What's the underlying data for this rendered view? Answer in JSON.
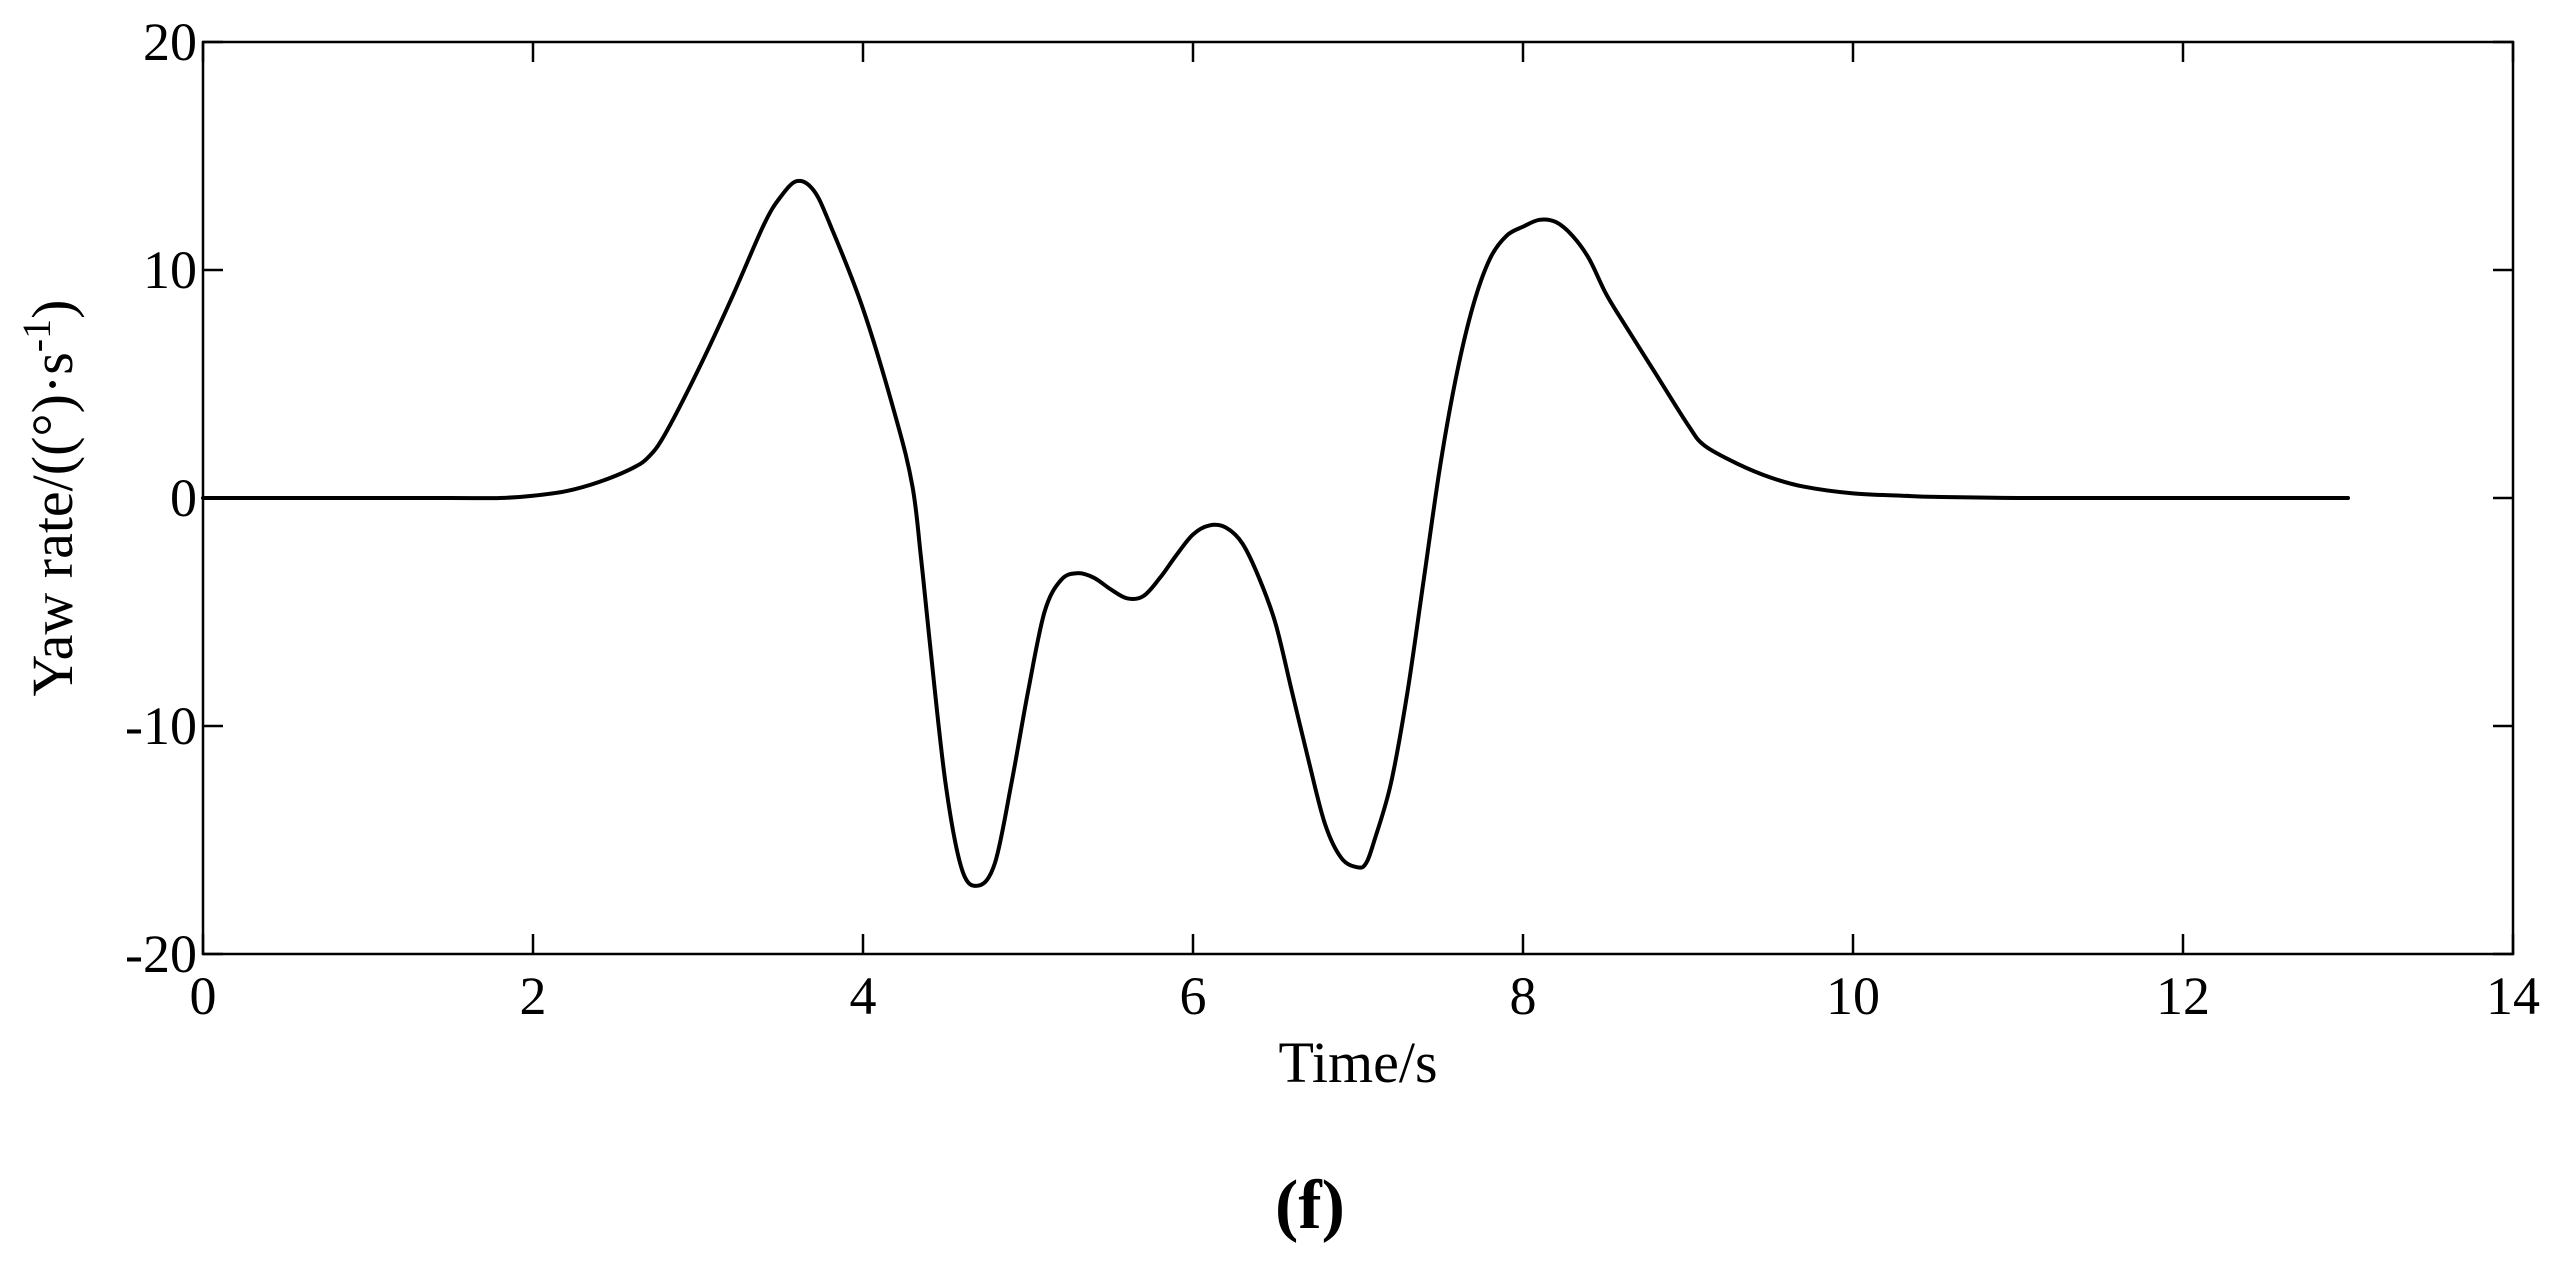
{
  "chart_data": {
    "type": "line",
    "title": "",
    "xlabel": "Time/s",
    "ylabel_parts": {
      "base": "Yaw rate/((°)·s",
      "sup": "-1",
      "close": ")"
    },
    "xlim": [
      0,
      14
    ],
    "ylim": [
      -20,
      20
    ],
    "xticks": [
      0,
      2,
      4,
      6,
      8,
      10,
      12,
      14
    ],
    "yticks": [
      -20,
      -10,
      0,
      10,
      20
    ],
    "xtick_labels": [
      "0",
      "2",
      "4",
      "6",
      "8",
      "10",
      "12",
      "14"
    ],
    "ytick_labels": [
      "-20",
      "-10",
      "0",
      "10",
      "20"
    ],
    "grid": false,
    "line_color": "#000000",
    "panel_label": "(f)",
    "series": [
      {
        "x": [
          0,
          0.5,
          1.0,
          1.5,
          1.8,
          2.0,
          2.2,
          2.4,
          2.6,
          2.7,
          2.8,
          3.0,
          3.2,
          3.4,
          3.5,
          3.6,
          3.7,
          3.8,
          4.0,
          4.2,
          4.3,
          4.35,
          4.4,
          4.5,
          4.6,
          4.7,
          4.8,
          4.9,
          5.0,
          5.1,
          5.2,
          5.3,
          5.4,
          5.5,
          5.6,
          5.7,
          5.8,
          5.9,
          6.0,
          6.1,
          6.2,
          6.3,
          6.4,
          6.5,
          6.6,
          6.7,
          6.8,
          6.9,
          7.0,
          7.05,
          7.1,
          7.2,
          7.3,
          7.4,
          7.5,
          7.6,
          7.7,
          7.8,
          7.9,
          8.0,
          8.1,
          8.2,
          8.3,
          8.4,
          8.5,
          8.6,
          8.8,
          9.0,
          9.1,
          9.3,
          9.5,
          9.7,
          10.0,
          10.3,
          10.5,
          11.0,
          12.0,
          13.0
        ],
        "y": [
          0,
          0,
          0,
          0,
          0,
          0.1,
          0.3,
          0.7,
          1.3,
          1.8,
          2.8,
          5.6,
          8.7,
          12.0,
          13.2,
          13.9,
          13.5,
          12.0,
          8.3,
          3.5,
          0.5,
          -2.5,
          -6.0,
          -12.5,
          -16.3,
          -17.0,
          -16.0,
          -12.5,
          -8.5,
          -5.0,
          -3.6,
          -3.3,
          -3.5,
          -4.0,
          -4.4,
          -4.3,
          -3.5,
          -2.5,
          -1.6,
          -1.2,
          -1.3,
          -2.0,
          -3.5,
          -5.5,
          -8.5,
          -11.5,
          -14.3,
          -15.8,
          -16.2,
          -16.0,
          -15.0,
          -12.5,
          -8.5,
          -3.5,
          1.5,
          5.5,
          8.5,
          10.5,
          11.5,
          11.9,
          12.2,
          12.1,
          11.5,
          10.5,
          9.0,
          7.8,
          5.5,
          3.2,
          2.3,
          1.5,
          0.9,
          0.5,
          0.2,
          0.1,
          0.05,
          0,
          0,
          0
        ]
      }
    ]
  }
}
